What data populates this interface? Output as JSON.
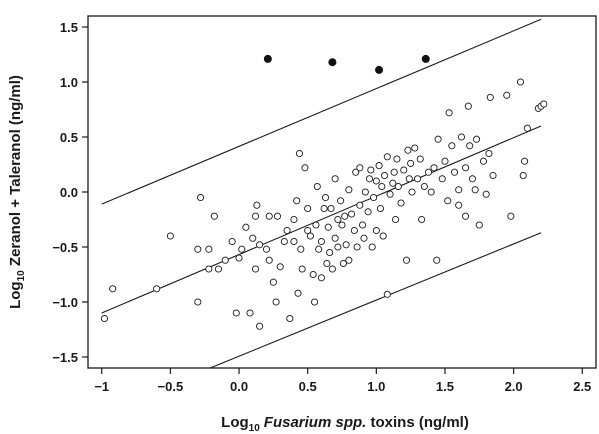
{
  "chart_data": {
    "type": "scatter",
    "xlim": [
      -1.1,
      2.6
    ],
    "ylim": [
      -1.6,
      1.6
    ],
    "xticks": [
      -1,
      -0.5,
      0.0,
      0.5,
      1.0,
      1.5,
      2.0,
      2.5
    ],
    "xtick_labels": [
      "−1",
      "−0.5",
      "0.0",
      "0.5",
      "1.0",
      "1.5",
      "2.0",
      "2.5"
    ],
    "yticks": [
      1.5,
      1.0,
      0.5,
      0.0,
      -0.5,
      -1.0,
      -1.5
    ],
    "ytick_labels": [
      "1.5",
      "1.0",
      "0.5",
      "0.0",
      "−0.5",
      "−1.0",
      "−1.5"
    ],
    "xlabel": {
      "prefix": "Log",
      "sub": "10",
      "italic": "Fusarium spp.",
      "suffix": " toxins (ng/ml)"
    },
    "ylabel": {
      "prefix": "Log",
      "sub": "10",
      "suffix": " Zeranol + Taleranol (ng/ml)"
    },
    "grid": false,
    "colors": {
      "open_marker": "#1a1a1a",
      "filled_marker": "#111111",
      "line": "#1a1a1a"
    },
    "series": [
      {
        "marker": "filled-circle",
        "points": [
          [
            0.21,
            1.21
          ],
          [
            0.68,
            1.18
          ],
          [
            1.02,
            1.11
          ],
          [
            1.36,
            1.21
          ]
        ]
      },
      {
        "marker": "open-circle",
        "points": [
          [
            -0.98,
            -1.15
          ],
          [
            -0.92,
            -0.88
          ],
          [
            -0.6,
            -0.88
          ],
          [
            -0.5,
            -0.4
          ],
          [
            -0.3,
            -1.0
          ],
          [
            -0.3,
            -0.52
          ],
          [
            -0.28,
            -0.05
          ],
          [
            -0.22,
            -0.52
          ],
          [
            -0.22,
            -0.7
          ],
          [
            -0.18,
            -0.22
          ],
          [
            -0.15,
            -0.7
          ],
          [
            -0.1,
            -0.62
          ],
          [
            -0.05,
            -0.45
          ],
          [
            -0.02,
            -1.1
          ],
          [
            0.0,
            -0.6
          ],
          [
            0.02,
            -0.52
          ],
          [
            0.05,
            -0.32
          ],
          [
            0.08,
            -1.1
          ],
          [
            0.1,
            -0.42
          ],
          [
            0.12,
            -0.22
          ],
          [
            0.12,
            -0.7
          ],
          [
            0.13,
            -0.12
          ],
          [
            0.15,
            -1.22
          ],
          [
            0.15,
            -0.48
          ],
          [
            0.2,
            -0.52
          ],
          [
            0.22,
            -0.22
          ],
          [
            0.22,
            -0.62
          ],
          [
            0.25,
            -0.82
          ],
          [
            0.27,
            -1.0
          ],
          [
            0.28,
            -0.22
          ],
          [
            0.3,
            -0.68
          ],
          [
            0.33,
            -0.45
          ],
          [
            0.35,
            -0.35
          ],
          [
            0.37,
            -1.15
          ],
          [
            0.4,
            -0.45
          ],
          [
            0.4,
            -0.25
          ],
          [
            0.42,
            -0.08
          ],
          [
            0.43,
            -0.92
          ],
          [
            0.44,
            0.35
          ],
          [
            0.45,
            -0.52
          ],
          [
            0.46,
            -0.7
          ],
          [
            0.48,
            0.22
          ],
          [
            0.5,
            -0.35
          ],
          [
            0.5,
            -0.15
          ],
          [
            0.52,
            -0.4
          ],
          [
            0.54,
            -0.75
          ],
          [
            0.55,
            -1.0
          ],
          [
            0.56,
            -0.3
          ],
          [
            0.57,
            0.05
          ],
          [
            0.58,
            -0.52
          ],
          [
            0.6,
            -0.78
          ],
          [
            0.6,
            -0.45
          ],
          [
            0.62,
            -0.15
          ],
          [
            0.63,
            -0.05
          ],
          [
            0.64,
            -0.65
          ],
          [
            0.65,
            -0.32
          ],
          [
            0.66,
            -0.55
          ],
          [
            0.67,
            -0.15
          ],
          [
            0.68,
            -0.7
          ],
          [
            0.7,
            -0.42
          ],
          [
            0.7,
            0.12
          ],
          [
            0.72,
            -0.25
          ],
          [
            0.72,
            -0.5
          ],
          [
            0.74,
            -0.08
          ],
          [
            0.75,
            -0.3
          ],
          [
            0.76,
            -0.65
          ],
          [
            0.77,
            -0.22
          ],
          [
            0.78,
            -0.48
          ],
          [
            0.8,
            0.02
          ],
          [
            0.8,
            -0.62
          ],
          [
            0.82,
            -0.2
          ],
          [
            0.84,
            -0.35
          ],
          [
            0.85,
            0.18
          ],
          [
            0.86,
            -0.5
          ],
          [
            0.88,
            -0.12
          ],
          [
            0.88,
            0.22
          ],
          [
            0.9,
            -0.3
          ],
          [
            0.91,
            -0.42
          ],
          [
            0.92,
            0.0
          ],
          [
            0.94,
            -0.18
          ],
          [
            0.95,
            0.12
          ],
          [
            0.96,
            0.2
          ],
          [
            0.97,
            -0.5
          ],
          [
            0.98,
            -0.05
          ],
          [
            1.0,
            0.1
          ],
          [
            1.0,
            -0.35
          ],
          [
            1.02,
            0.24
          ],
          [
            1.03,
            -0.15
          ],
          [
            1.04,
            0.05
          ],
          [
            1.05,
            -0.4
          ],
          [
            1.06,
            0.15
          ],
          [
            1.08,
            0.32
          ],
          [
            1.08,
            -0.93
          ],
          [
            1.1,
            -0.02
          ],
          [
            1.12,
            0.08
          ],
          [
            1.13,
            0.18
          ],
          [
            1.14,
            -0.25
          ],
          [
            1.15,
            0.3
          ],
          [
            1.16,
            0.05
          ],
          [
            1.18,
            -0.1
          ],
          [
            1.2,
            0.2
          ],
          [
            1.22,
            -0.62
          ],
          [
            1.23,
            0.38
          ],
          [
            1.24,
            0.12
          ],
          [
            1.25,
            0.26
          ],
          [
            1.26,
            0.0
          ],
          [
            1.28,
            0.4
          ],
          [
            1.3,
            0.12
          ],
          [
            1.32,
            0.3
          ],
          [
            1.33,
            -0.25
          ],
          [
            1.35,
            0.05
          ],
          [
            1.38,
            0.18
          ],
          [
            1.4,
            0.0
          ],
          [
            1.42,
            0.22
          ],
          [
            1.44,
            -0.62
          ],
          [
            1.45,
            0.48
          ],
          [
            1.48,
            0.12
          ],
          [
            1.5,
            0.28
          ],
          [
            1.52,
            -0.08
          ],
          [
            1.53,
            0.72
          ],
          [
            1.55,
            0.42
          ],
          [
            1.57,
            0.18
          ],
          [
            1.6,
            -0.12
          ],
          [
            1.6,
            0.02
          ],
          [
            1.62,
            0.5
          ],
          [
            1.65,
            -0.22
          ],
          [
            1.65,
            0.22
          ],
          [
            1.67,
            0.78
          ],
          [
            1.68,
            0.42
          ],
          [
            1.7,
            0.12
          ],
          [
            1.72,
            0.02
          ],
          [
            1.73,
            0.48
          ],
          [
            1.75,
            -0.3
          ],
          [
            1.78,
            0.28
          ],
          [
            1.8,
            -0.02
          ],
          [
            1.82,
            0.35
          ],
          [
            1.83,
            0.86
          ],
          [
            1.85,
            0.15
          ],
          [
            1.95,
            0.88
          ],
          [
            1.98,
            -0.22
          ],
          [
            2.05,
            1.0
          ],
          [
            2.07,
            0.15
          ],
          [
            2.08,
            0.28
          ],
          [
            2.1,
            0.58
          ],
          [
            2.18,
            0.76
          ],
          [
            2.2,
            0.78
          ],
          [
            2.22,
            0.8
          ]
        ]
      }
    ],
    "lines": [
      {
        "role": "regression",
        "x": [
          -1.0,
          2.2
        ],
        "y": [
          -1.1,
          0.6
        ]
      },
      {
        "role": "upper-bound",
        "x": [
          -1.0,
          2.2
        ],
        "y": [
          -0.11,
          1.57
        ]
      },
      {
        "role": "lower-bound",
        "x": [
          -0.21,
          2.2
        ],
        "y": [
          -1.6,
          -0.37
        ]
      }
    ]
  }
}
